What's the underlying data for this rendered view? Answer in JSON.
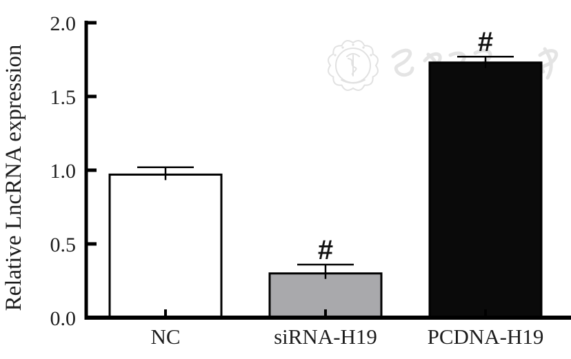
{
  "watermark": {
    "text": "中华医学会"
  },
  "chart_data": {
    "type": "bar",
    "title": "",
    "xlabel": "",
    "ylabel": "Relative LncRNA expression",
    "categories": [
      "NC",
      "siRNA-H19",
      "PCDNA-H19"
    ],
    "values": [
      0.97,
      0.3,
      1.73
    ],
    "error_plus": [
      0.05,
      0.06,
      0.04
    ],
    "annotations": [
      "",
      "#",
      "#"
    ],
    "bar_fill_colors": [
      "#ffffff",
      "#a9a9ac",
      "#0a0a0a"
    ],
    "bar_border_color": "#000000",
    "axis_color": "#000000",
    "text_color": "#1c1c1c",
    "watermark_color": "#c9c9c9",
    "ylim": [
      0.0,
      2.0
    ],
    "ytick_labels": [
      "0.0",
      "0.5",
      "1.0",
      "1.5",
      "2.0"
    ],
    "grid": false,
    "legend": null
  }
}
